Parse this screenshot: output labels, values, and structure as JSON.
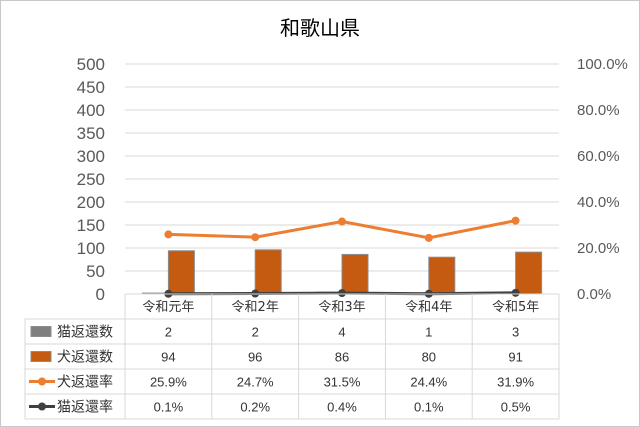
{
  "chart_data": {
    "type": "bar",
    "title": "和歌山県",
    "categories": [
      "令和元年",
      "令和2年",
      "令和3年",
      "令和4年",
      "令和5年"
    ],
    "ylim": [
      0,
      500
    ],
    "y_ticks": [
      "0",
      "50",
      "100",
      "150",
      "200",
      "250",
      "300",
      "350",
      "400",
      "450",
      "500"
    ],
    "y2lim": [
      0,
      1.0
    ],
    "y2_ticks": [
      "0.0%",
      "20.0%",
      "40.0%",
      "60.0%",
      "80.0%",
      "100.0%"
    ],
    "grid": true,
    "legend": "data-table",
    "series": [
      {
        "name": "猫返還数",
        "type": "bar",
        "axis": "left",
        "color": "#7f7f7f",
        "values": [
          2,
          2,
          4,
          1,
          3
        ],
        "labels": [
          "2",
          "2",
          "4",
          "1",
          "3"
        ]
      },
      {
        "name": "犬返還数",
        "type": "bar",
        "axis": "left",
        "color": "#c55a11",
        "values": [
          94,
          96,
          86,
          80,
          91
        ],
        "labels": [
          "94",
          "96",
          "86",
          "80",
          "91"
        ]
      },
      {
        "name": "犬返還率",
        "type": "line",
        "axis": "right",
        "color": "#ed7d31",
        "values": [
          0.259,
          0.247,
          0.315,
          0.244,
          0.319
        ],
        "labels": [
          "25.9%",
          "24.7%",
          "31.5%",
          "24.4%",
          "31.9%"
        ]
      },
      {
        "name": "猫返還率",
        "type": "line",
        "axis": "right",
        "color": "#404040",
        "values": [
          0.001,
          0.002,
          0.004,
          0.001,
          0.005
        ],
        "labels": [
          "0.1%",
          "0.2%",
          "0.4%",
          "0.1%",
          "0.5%"
        ]
      }
    ]
  }
}
